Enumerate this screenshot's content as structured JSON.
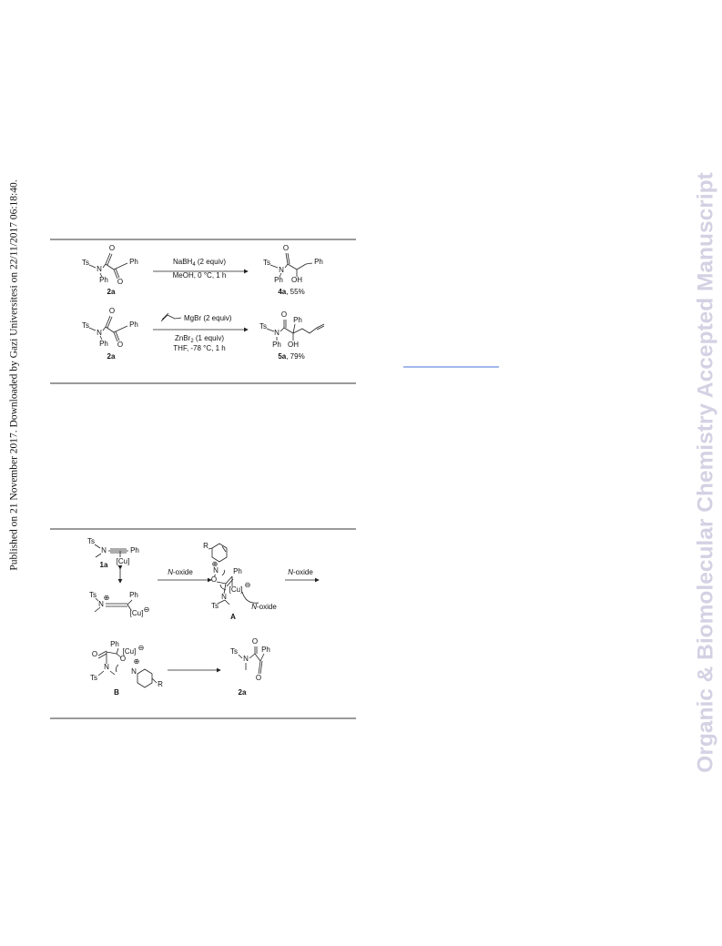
{
  "side_note": "Published on 21 November 2017. Downloaded by Gazi Universitesi on 22/11/2017 06:18:40.",
  "watermark": "Organic & Biomolecular Chemistry Accepted Manuscript",
  "scheme1": {
    "r1": {
      "reactant": [
        "Ts",
        "N",
        "Ph",
        "O",
        "Ph",
        "O"
      ],
      "reactant_label": "2a",
      "reagent": [
        "NaBH",
        "4",
        " (2 equiv)"
      ],
      "conditions": "MeOH, 0 °C, 1 h",
      "product": [
        "Ts",
        "N",
        "Ph",
        "O",
        "Ph",
        "OH"
      ],
      "product_label": "4a",
      "yield": ", 55%"
    },
    "r2": {
      "reactant": [
        "Ts",
        "N",
        "Ph",
        "O",
        "Ph",
        "O"
      ],
      "reactant_label": "2a",
      "reagent1": "MgBr (2 equiv)",
      "reagent2": [
        "ZnBr",
        "2",
        " (1 equiv)"
      ],
      "conditions": "THF, -78 °C, 1 h",
      "product": [
        "Ts",
        "N",
        "Ph",
        "O",
        "Ph",
        "OH"
      ],
      "product_label": "5a",
      "yield": ", 79%"
    }
  },
  "scheme2": {
    "start": [
      "Ts",
      "N",
      "Ph",
      "[Cu]"
    ],
    "start_label": "1a",
    "resonance": [
      "Ts",
      "N",
      "⊕",
      "Ph",
      "[Cu]",
      "⊖"
    ],
    "arrow1": [
      "N",
      "-oxide"
    ],
    "intermediate_a": [
      "R",
      "N",
      "⊕",
      "O",
      "Ph",
      "[Cu]",
      "⊖",
      "N",
      "Ts"
    ],
    "attack": [
      "N",
      "-oxide"
    ],
    "a_label": "A",
    "arrow2": [
      "N",
      "-oxide"
    ],
    "intermediate_b": [
      "Ph",
      "[Cu]",
      "⊖",
      "O",
      "O",
      "⊕",
      "N",
      "Ts",
      "N",
      "R"
    ],
    "b_label": "B",
    "product": [
      "Ts",
      "N",
      "O",
      "Ph",
      "O"
    ],
    "product_label": "2a"
  }
}
